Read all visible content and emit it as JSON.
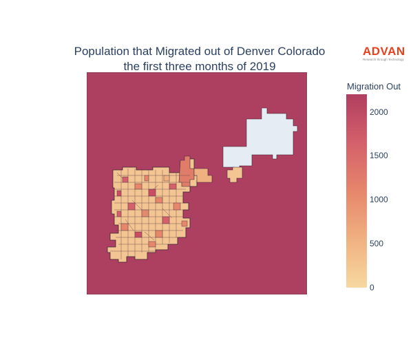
{
  "chart_data": {
    "type": "choropleth",
    "title_line1": "Population that Migrated out of Denver Colorado",
    "title_line2": "the first three months of 2019",
    "colorbar": {
      "title": "Migration Out",
      "min": 0,
      "max": 2200,
      "ticks": [
        0,
        500,
        1000,
        1500,
        2000
      ],
      "colorscale": [
        "#f7d8a0",
        "#f0b181",
        "#e6866b",
        "#d4606b",
        "#b03e5f"
      ]
    },
    "background_value": 2200,
    "airport_value": 0
  },
  "logo": {
    "word": "ADVAN",
    "tagline": "Research through Technology"
  },
  "colors": {
    "outside": "#ad3f61",
    "airport": "#e6ecf4",
    "border": "#3a2a35"
  }
}
